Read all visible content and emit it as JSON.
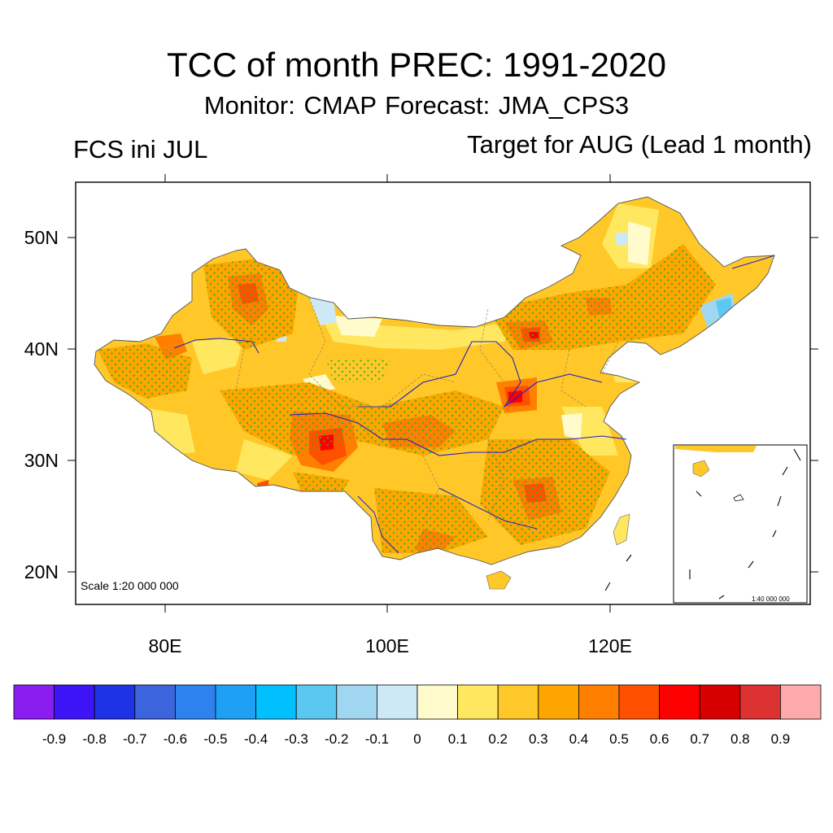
{
  "title": "TCC of month PREC: 1991-2020",
  "subtitle": "Monitor: CMAP   Forecast: JMA_CPS3",
  "left_label": "FCS ini JUL",
  "right_label": "Target for AUG (Lead 1 month)",
  "scale_main": "Scale 1:20 000 000",
  "scale_inset": "1:40 000 000",
  "axes": {
    "x_ticks": [
      "80E",
      "100E",
      "120E"
    ],
    "y_ticks": [
      "50N",
      "40N",
      "30N",
      "20N"
    ]
  },
  "colorbar": {
    "labels": [
      "-0.9",
      "-0.8",
      "-0.7",
      "-0.6",
      "-0.5",
      "-0.4",
      "-0.3",
      "-0.2",
      "-0.1",
      "0",
      "0.1",
      "0.2",
      "0.3",
      "0.4",
      "0.5",
      "0.6",
      "0.7",
      "0.8",
      "0.9"
    ],
    "colors": [
      "#8a1ef0",
      "#3c14f5",
      "#1e32e6",
      "#3c64dc",
      "#2d82f0",
      "#1ea0f5",
      "#00c0ff",
      "#5ac8f0",
      "#a0d6f0",
      "#cde9f6",
      "#fffbcc",
      "#ffe75f",
      "#ffc828",
      "#ffa500",
      "#ff8000",
      "#ff5000",
      "#ff0000",
      "#d70000",
      "#dc3232",
      "#ffaaaa"
    ]
  },
  "chart_data": {
    "type": "heatmap",
    "title": "TCC of month PREC: 1991-2020",
    "subtitle": "Monitor: CMAP   Forecast: JMA_CPS3",
    "xlabel": "",
    "ylabel": "",
    "x_range": [
      "73E",
      "139E"
    ],
    "y_range": [
      "17N",
      "55N"
    ],
    "x_ticks": [
      "80E",
      "100E",
      "120E"
    ],
    "y_ticks": [
      "50N",
      "40N",
      "30N",
      "20N"
    ],
    "color_scale": [
      -0.9,
      -0.8,
      -0.7,
      -0.6,
      -0.5,
      -0.4,
      -0.3,
      -0.2,
      -0.1,
      0,
      0.1,
      0.2,
      0.3,
      0.4,
      0.5,
      0.6,
      0.7,
      0.8,
      0.9
    ]
  }
}
